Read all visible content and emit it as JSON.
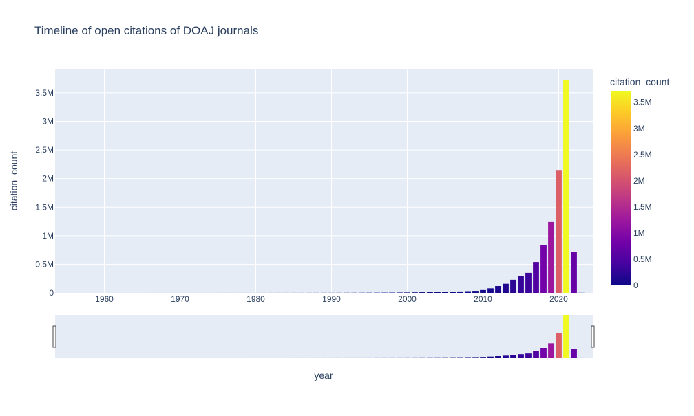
{
  "chart_data": {
    "type": "bar",
    "title": "Timeline of open citations of DOAJ journals",
    "xlabel": "year",
    "ylabel": "citation_count",
    "xlim": [
      1953.5,
      2024.5
    ],
    "ylim": [
      0,
      3920000
    ],
    "x_ticks": [
      1960,
      1970,
      1980,
      1990,
      2000,
      2010,
      2020
    ],
    "x_tick_labels": [
      "1960",
      "1970",
      "1980",
      "1990",
      "2000",
      "2010",
      "2020"
    ],
    "y_ticks": [
      0,
      500000,
      1000000,
      1500000,
      2000000,
      2500000,
      3000000,
      3500000
    ],
    "y_tick_labels": [
      "0",
      "0.5M",
      "1M",
      "1.5M",
      "2M",
      "2.5M",
      "3M",
      "3.5M"
    ],
    "grid": true,
    "colorbar": {
      "title": "citation_count",
      "min": 0,
      "max": 3720000,
      "ticks": [
        0,
        500000,
        1000000,
        1500000,
        2000000,
        2500000,
        3000000,
        3500000
      ],
      "tick_labels": [
        "0",
        "0.5M",
        "1M",
        "1.5M",
        "2M",
        "2.5M",
        "3M",
        "3.5M"
      ],
      "colorscale": [
        "#0d0887",
        "#46039f",
        "#7201a8",
        "#9c179e",
        "#bd3786",
        "#d8576b",
        "#ed7953",
        "#fb9f3a",
        "#fdca26",
        "#f0f921"
      ]
    },
    "rangeslider": true,
    "series": [
      {
        "x": [
          1955,
          1956,
          1957,
          1958,
          1959,
          1960,
          1961,
          1962,
          1963,
          1964,
          1965,
          1966,
          1967,
          1968,
          1969,
          1970,
          1971,
          1972,
          1973,
          1974,
          1975,
          1976,
          1977,
          1978,
          1979,
          1980,
          1981,
          1982,
          1983,
          1984,
          1985,
          1986,
          1987,
          1988,
          1989,
          1990,
          1991,
          1992,
          1993,
          1994,
          1995,
          1996,
          1997,
          1998,
          1999,
          2000,
          2001,
          2002,
          2003,
          2004,
          2005,
          2006,
          2007,
          2008,
          2009,
          2010,
          2011,
          2012,
          2013,
          2014,
          2015,
          2016,
          2017,
          2018,
          2019,
          2020,
          2021,
          2022,
          2023
        ],
        "values": [
          20,
          20,
          30,
          30,
          40,
          50,
          50,
          60,
          80,
          90,
          100,
          110,
          130,
          150,
          170,
          200,
          220,
          250,
          280,
          300,
          350,
          380,
          420,
          460,
          500,
          550,
          600,
          700,
          800,
          900,
          1000,
          1100,
          1200,
          1400,
          1600,
          1800,
          2000,
          2300,
          2600,
          3000,
          3500,
          4000,
          4700,
          5500,
          6500,
          7500,
          9000,
          11000,
          13000,
          15000,
          18000,
          21000,
          25000,
          30000,
          35000,
          50000,
          80000,
          120000,
          160000,
          230000,
          290000,
          350000,
          540000,
          840000,
          1240000,
          2150000,
          3720000,
          720000,
          2000
        ]
      }
    ]
  }
}
